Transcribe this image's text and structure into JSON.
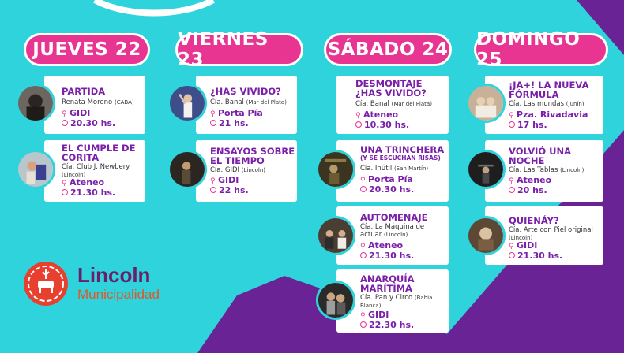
{
  "colors": {
    "background": "#2ed3dc",
    "purple": "#6a2395",
    "pink": "#e83592",
    "title": "#7a1fa8"
  },
  "days": [
    {
      "label": "JUEVES 22",
      "events": [
        {
          "title": "PARTIDA",
          "company": "Renata Moreno",
          "origin": "(CABA)",
          "venue": "GIDI",
          "time": "20.30 hs."
        },
        {
          "title": "EL CUMPLE DE CORITA",
          "company": "Cía. Club J. Newbery",
          "origin": "(Lincoln)",
          "venue": "Ateneo",
          "time": "21.30 hs."
        }
      ]
    },
    {
      "label": "VIERNES 23",
      "events": [
        {
          "title": "¿HAS VIVIDO?",
          "company": "Cía. Banal",
          "origin": "(Mar del Plata)",
          "venue": "Porta Pía",
          "time": "21 hs."
        },
        {
          "title": "ENSAYOS SOBRE EL TIEMPO",
          "company": "Cía. GIDI",
          "origin": "(Lincoln)",
          "venue": "GIDI",
          "time": "22 hs."
        }
      ]
    },
    {
      "label": "SÁBADO 24",
      "events": [
        {
          "title": "DESMONTAJE ¿HAS VIVIDO?",
          "company": "Cía. Banal",
          "origin": "(Mar del Plata)",
          "venue": "Ateneo",
          "time": "10.30 hs."
        },
        {
          "title": "UNA TRINCHERA",
          "subtitle": "(Y SE ESCUCHAN RISAS)",
          "company": "Cía. Inútil",
          "origin": "(San Martín)",
          "venue": "Porta Pía",
          "time": "20.30 hs."
        },
        {
          "title": "AUTOMENAJE",
          "company": "Cía. La Máquina de actuar",
          "origin": "(Lincoln)",
          "venue": "Ateneo",
          "time": "21.30 hs."
        },
        {
          "title": "ANARQUÍA MARÍTIMA",
          "company": "Cía. Pan y Circo",
          "origin": "(Bahía Blanca)",
          "venue": "GIDI",
          "time": "22.30 hs."
        }
      ]
    },
    {
      "label": "DOMINGO 25",
      "events": [
        {
          "title": "¡JA+! LA NUEVA FÓRMULA",
          "company": "Cía. Las mundas",
          "origin": "(Junín)",
          "venue": "Pza. Rivadavia",
          "time": "17 hs."
        },
        {
          "title": "VOLVIÓ UNA NOCHE",
          "company": "Cía. Las Tablas",
          "origin": "(Lincoln)",
          "venue": "Ateneo",
          "time": "20 hs."
        },
        {
          "title": "QUIENÁY?",
          "company": "Cía. Arte con Piel original",
          "origin": "(Lincoln)",
          "venue": "GIDI",
          "time": "21.30 hs."
        }
      ]
    }
  ],
  "logo": {
    "name": "Lincoln",
    "subtitle": "Municipalidad",
    "name_color": "#6b1f6a",
    "subtitle_color": "#e0572a"
  }
}
